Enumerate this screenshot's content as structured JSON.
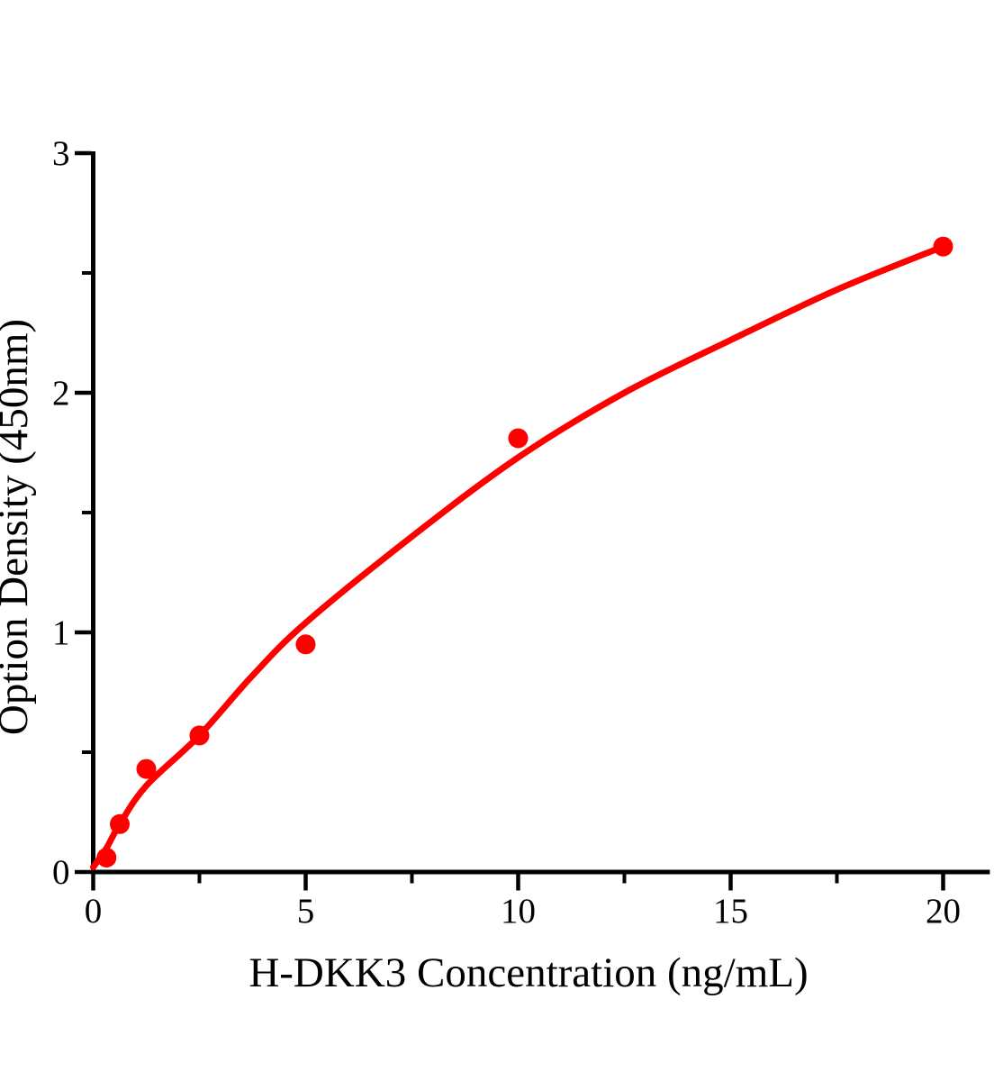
{
  "figure": {
    "background": "#ffffff"
  },
  "chart_data": {
    "type": "scatter",
    "title": "",
    "xlabel": "H-DKK3 Concentration（ng/mL）",
    "ylabel": "Option Density（450nm）",
    "xlim": [
      0,
      21.1
    ],
    "ylim": [
      0,
      3
    ],
    "grid": false,
    "legend_position": "none",
    "axis_color": "#000000",
    "x_ticks": {
      "major": [
        0,
        5,
        10,
        15,
        20
      ],
      "major_labels": [
        "0",
        "5",
        "10",
        "15",
        "20"
      ],
      "minor": [
        2.5,
        7.5,
        12.5,
        17.5
      ]
    },
    "y_ticks": {
      "major": [
        0,
        1,
        2,
        3
      ],
      "major_labels": [
        "0",
        "1",
        "2",
        "3"
      ],
      "minor": [
        0.5,
        1.5,
        2.5
      ]
    },
    "series": [
      {
        "name": "standard-data-points",
        "type": "scatter",
        "marker": "circle",
        "color": "#ff0000",
        "x": [
          0.313,
          0.625,
          1.25,
          2.5,
          5,
          10,
          20
        ],
        "y": [
          0.06,
          0.2,
          0.43,
          0.57,
          0.95,
          1.81,
          2.61
        ]
      },
      {
        "name": "fitted-standard-curve",
        "type": "line",
        "color": "#ff0000",
        "x": [
          0,
          0.313,
          0.625,
          1.25,
          2.5,
          3.75,
          5,
          7.5,
          10,
          12.5,
          15,
          17.5,
          20
        ],
        "y": [
          0.02,
          0.1,
          0.2,
          0.36,
          0.57,
          0.82,
          1.04,
          1.4,
          1.73,
          2.0,
          2.22,
          2.43,
          2.61
        ]
      }
    ]
  }
}
